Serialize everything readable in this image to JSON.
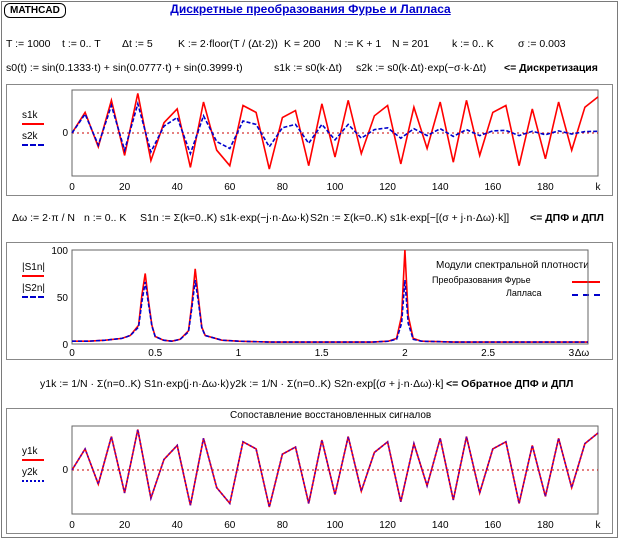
{
  "app": {
    "badge": "MATHCAD",
    "title": "Дискретные преобразования Фурье и Лапласа"
  },
  "defs": {
    "T": "T := 1000",
    "t": "t := 0.. T",
    "dt": "Δt := 5",
    "K": "K := 2·floor(T / (Δt·2))",
    "Kval": "K = 200",
    "N": "N := K + 1",
    "Nval": "N = 201",
    "k": "k := 0.. K",
    "sigma": "σ := 0.003",
    "s0": "s0(t) := sin(0.1333·t) + sin(0.0777·t) + sin(0.3999·t)",
    "s1": "s1k := s0(k·Δt)",
    "s2": "s2k := s0(k·Δt)·exp(−σ·k·Δt)",
    "disc": "<= Дискретизация"
  },
  "dft": {
    "dw": "Δω := 2·π / N",
    "n": "n := 0.. K",
    "S1": "S1n := Σ(k=0..K) s1k·exp(−j·n·Δω·k)",
    "S2": "S2n := Σ(k=0..K) s1k·exp[−[(σ + j·n·Δω)·k]]",
    "label": "<= ДПФ и ДПЛ"
  },
  "inv": {
    "y1": "y1k := 1/N · Σ(n=0..K) S1n·exp(j·n·Δω·k)",
    "y2": "y2k := 1/N · Σ(n=0..K) S2n·exp[(σ + j·n·Δω)·k]",
    "label": "<= Обратное ДПФ и ДПЛ"
  },
  "colors": {
    "red": "#ff0000",
    "blue": "#0000cc",
    "purple": "#7a1fa2"
  },
  "chart_data": [
    {
      "type": "line",
      "legend": [
        "s1k",
        "s2k"
      ],
      "xlabel": "k",
      "xticks": [
        "0",
        "20",
        "40",
        "60",
        "80",
        "100",
        "120",
        "140",
        "160",
        "180",
        "k"
      ],
      "yticks": [
        "0"
      ],
      "x": [
        0,
        5,
        10,
        15,
        20,
        25,
        30,
        35,
        40,
        45,
        50,
        55,
        60,
        65,
        70,
        75,
        80,
        85,
        90,
        95,
        100,
        105,
        110,
        115,
        120,
        125,
        130,
        135,
        140,
        145,
        150,
        155,
        160,
        165,
        170,
        175,
        180,
        185,
        190,
        195,
        200
      ],
      "series": [
        {
          "name": "s1k",
          "values": [
            0,
            1.2,
            -0.8,
            1.9,
            -1.3,
            2.3,
            -1.6,
            0.6,
            1.4,
            -2.0,
            1.8,
            -1.0,
            -1.9,
            1.6,
            1.2,
            -2.1,
            0.9,
            1.3,
            -1.9,
            1.7,
            -1.4,
            1.9,
            -1.2,
            1.0,
            1.6,
            -1.8,
            1.5,
            -0.9,
            1.8,
            -1.7,
            1.9,
            -1.3,
            1.2,
            1.6,
            -1.9,
            1.4,
            -1.5,
            1.8,
            -1.0,
            1.5,
            2.1
          ]
        },
        {
          "name": "s2k",
          "values": [
            0,
            1.1,
            -0.7,
            1.6,
            -1.0,
            1.7,
            -1.1,
            0.4,
            0.9,
            -1.2,
            1.0,
            -0.5,
            -0.9,
            0.7,
            0.5,
            -0.8,
            0.3,
            0.5,
            -0.6,
            0.5,
            -0.4,
            0.5,
            -0.3,
            0.2,
            0.3,
            -0.3,
            0.25,
            -0.15,
            0.25,
            -0.2,
            0.2,
            -0.15,
            0.12,
            0.15,
            -0.15,
            0.1,
            -0.1,
            0.12,
            -0.06,
            0.08,
            0.1
          ]
        }
      ]
    },
    {
      "type": "line",
      "legend_title": "Модули спектральной плотности",
      "legend": [
        "Преобразования Фурье",
        "Лапласа"
      ],
      "series_labels": [
        "|S1n|",
        "|S2n|"
      ],
      "xlabel": "Δω",
      "xticks": [
        "0",
        "0.5",
        "1",
        "1.5",
        "2",
        "2.5",
        "3"
      ],
      "yticks": [
        "0",
        "50",
        "100"
      ],
      "ylim": [
        0,
        100
      ],
      "x": [
        0,
        0.1,
        0.2,
        0.3,
        0.35,
        0.4,
        0.42,
        0.44,
        0.46,
        0.48,
        0.5,
        0.55,
        0.6,
        0.65,
        0.7,
        0.72,
        0.74,
        0.76,
        0.78,
        0.8,
        0.9,
        1.0,
        1.2,
        1.4,
        1.6,
        1.8,
        1.9,
        1.95,
        1.98,
        2.0,
        2.02,
        2.05,
        2.1,
        2.3,
        2.5,
        2.7,
        2.9,
        3.1
      ],
      "series": [
        {
          "name": "|S1n|",
          "values": [
            3,
            3,
            4,
            6,
            9,
            20,
            52,
            75,
            45,
            20,
            8,
            4,
            3,
            5,
            14,
            42,
            80,
            48,
            18,
            9,
            4,
            3,
            2,
            2,
            2,
            2,
            3,
            6,
            30,
            100,
            30,
            6,
            3,
            2,
            2,
            2,
            2,
            2
          ]
        },
        {
          "name": "|S2n|",
          "values": [
            3,
            3,
            4,
            6,
            9,
            18,
            45,
            66,
            42,
            19,
            8,
            4,
            3,
            5,
            13,
            38,
            68,
            44,
            17,
            9,
            4,
            3,
            2,
            2,
            2,
            2,
            3,
            5,
            22,
            68,
            22,
            5,
            3,
            2,
            2,
            2,
            2,
            2
          ]
        }
      ]
    },
    {
      "type": "line",
      "title": "Сопоставление восстановленных сигналов",
      "legend": [
        "y1k",
        "y2k"
      ],
      "xlabel": "k",
      "xticks": [
        "0",
        "20",
        "40",
        "60",
        "80",
        "100",
        "120",
        "140",
        "160",
        "180",
        "k"
      ],
      "yticks": [
        "0"
      ],
      "x": [
        0,
        5,
        10,
        15,
        20,
        25,
        30,
        35,
        40,
        45,
        50,
        55,
        60,
        65,
        70,
        75,
        80,
        85,
        90,
        95,
        100,
        105,
        110,
        115,
        120,
        125,
        130,
        135,
        140,
        145,
        150,
        155,
        160,
        165,
        170,
        175,
        180,
        185,
        190,
        195,
        200
      ],
      "series": [
        {
          "name": "y1k",
          "values": [
            0,
            1.2,
            -0.8,
            1.9,
            -1.3,
            2.3,
            -1.6,
            0.6,
            1.4,
            -2.0,
            1.8,
            -1.0,
            -1.9,
            1.6,
            1.2,
            -2.1,
            0.9,
            1.3,
            -1.9,
            1.7,
            -1.4,
            1.9,
            -1.2,
            1.0,
            1.6,
            -1.8,
            1.5,
            -0.9,
            1.8,
            -1.7,
            1.9,
            -1.3,
            1.2,
            1.6,
            -1.9,
            1.4,
            -1.5,
            1.8,
            -1.0,
            1.5,
            2.1
          ]
        },
        {
          "name": "y2k",
          "values": [
            0,
            1.2,
            -0.8,
            1.9,
            -1.3,
            2.3,
            -1.6,
            0.6,
            1.4,
            -2.0,
            1.8,
            -1.0,
            -1.9,
            1.6,
            1.2,
            -2.1,
            0.9,
            1.3,
            -1.9,
            1.7,
            -1.4,
            1.9,
            -1.2,
            1.0,
            1.6,
            -1.8,
            1.5,
            -0.9,
            1.8,
            -1.7,
            1.9,
            -1.3,
            1.2,
            1.6,
            -1.9,
            1.4,
            -1.5,
            1.8,
            -1.0,
            1.5,
            2.1
          ]
        }
      ]
    }
  ]
}
